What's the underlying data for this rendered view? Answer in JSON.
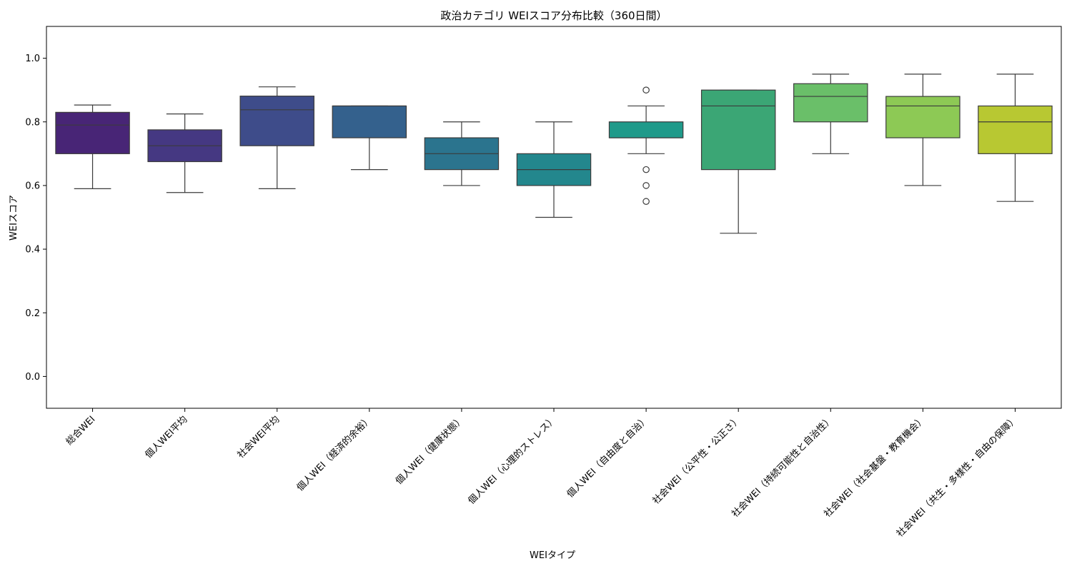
{
  "chart_data": {
    "type": "box",
    "title": "政治カテゴリ WEIスコア分布比較（360日間）",
    "xlabel": "WEIタイプ",
    "ylabel": "WEIスコア",
    "ylim": [
      -0.1,
      1.1
    ],
    "yticks": [
      0.0,
      0.2,
      0.4,
      0.6,
      0.8,
      1.0
    ],
    "ytick_labels": [
      "0.0",
      "0.2",
      "0.4",
      "0.6",
      "0.8",
      "1.0"
    ],
    "grid": false,
    "categories": [
      "総合WEI",
      "個人WEI平均",
      "社会WEI平均",
      "個人WEI（経済的余裕）",
      "個人WEI（健康状態）",
      "個人WEI（心理的ストレス）",
      "個人WEI（自由度と自治）",
      "社会WEI（公平性・公正さ）",
      "社会WEI（持続可能性と自治性）",
      "社会WEI（社会基盤・教育機会）",
      "社会WEI（共生・多様性・自由の保障）"
    ],
    "boxes": [
      {
        "min": 0.59,
        "q1": 0.7,
        "median": 0.79,
        "q3": 0.83,
        "max": 0.853,
        "outliers": [],
        "color": "#482576"
      },
      {
        "min": 0.578,
        "q1": 0.675,
        "median": 0.725,
        "q3": 0.775,
        "max": 0.825,
        "outliers": [],
        "color": "#453882"
      },
      {
        "min": 0.59,
        "q1": 0.725,
        "median": 0.838,
        "q3": 0.881,
        "max": 0.91,
        "outliers": [],
        "color": "#3e4c8a"
      },
      {
        "min": 0.65,
        "q1": 0.75,
        "median": 0.85,
        "q3": 0.85,
        "max": 0.85,
        "outliers": [],
        "color": "#34618d"
      },
      {
        "min": 0.6,
        "q1": 0.65,
        "median": 0.7,
        "q3": 0.75,
        "max": 0.8,
        "outliers": [],
        "color": "#2b748e"
      },
      {
        "min": 0.5,
        "q1": 0.6,
        "median": 0.65,
        "q3": 0.7,
        "max": 0.8,
        "outliers": [],
        "color": "#23878d"
      },
      {
        "min": 0.7,
        "q1": 0.75,
        "median": 0.75,
        "q3": 0.8,
        "max": 0.85,
        "outliers": [
          0.9,
          0.65,
          0.6,
          0.55
        ],
        "color": "#1f9a8a"
      },
      {
        "min": 0.45,
        "q1": 0.65,
        "median": 0.85,
        "q3": 0.9,
        "max": 0.9,
        "outliers": [],
        "color": "#3ba675"
      },
      {
        "min": 0.7,
        "q1": 0.8,
        "median": 0.88,
        "q3": 0.92,
        "max": 0.95,
        "outliers": [],
        "color": "#6abf69"
      },
      {
        "min": 0.6,
        "q1": 0.75,
        "median": 0.85,
        "q3": 0.88,
        "max": 0.95,
        "outliers": [],
        "color": "#8dc955"
      },
      {
        "min": 0.55,
        "q1": 0.7,
        "median": 0.8,
        "q3": 0.85,
        "max": 0.95,
        "outliers": [],
        "color": "#b8c832"
      }
    ]
  }
}
